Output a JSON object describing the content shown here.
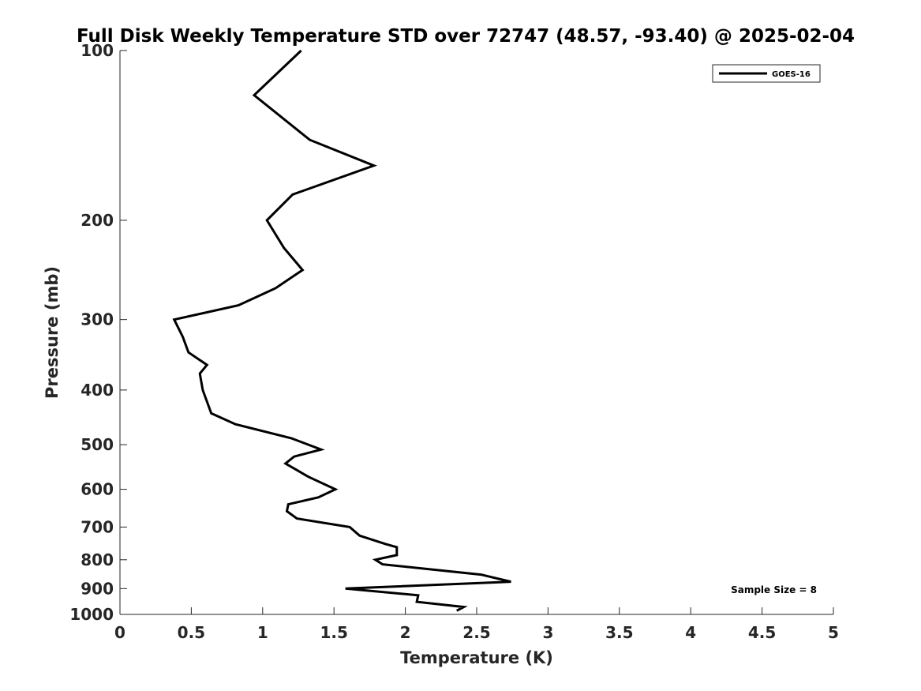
{
  "chart_data": {
    "type": "line",
    "title": "Full Disk Weekly Temperature STD over 72747 (48.57, -93.40) @ 2025-02-04",
    "xlabel": "Temperature (K)",
    "ylabel": "Pressure (mb)",
    "xlim": [
      0,
      5
    ],
    "ylim": [
      100,
      1000
    ],
    "y_scale": "log",
    "y_direction": "reversed",
    "grid": false,
    "legend_position": "top-right",
    "x_ticks": [
      0,
      0.5,
      1,
      1.5,
      2,
      2.5,
      3,
      3.5,
      4,
      4.5,
      5
    ],
    "x_tick_labels": [
      "0",
      "0.5",
      "1",
      "1.5",
      "2",
      "2.5",
      "3",
      "3.5",
      "4",
      "4.5",
      "5"
    ],
    "y_ticks": [
      100,
      200,
      300,
      400,
      500,
      600,
      700,
      800,
      900,
      1000
    ],
    "y_tick_labels": [
      "100",
      "200",
      "300",
      "400",
      "500",
      "600",
      "700",
      "800",
      "900",
      "1000"
    ],
    "series": [
      {
        "name": "GOES-16",
        "color": "#000000",
        "points": [
          [
            1.27,
            100
          ],
          [
            0.94,
            120
          ],
          [
            1.33,
            144
          ],
          [
            1.78,
            160
          ],
          [
            1.21,
            180
          ],
          [
            1.03,
            200
          ],
          [
            1.15,
            224
          ],
          [
            1.28,
            245
          ],
          [
            1.09,
            264
          ],
          [
            0.83,
            283
          ],
          [
            0.38,
            300
          ],
          [
            0.44,
            322
          ],
          [
            0.48,
            343
          ],
          [
            0.61,
            361
          ],
          [
            0.56,
            374
          ],
          [
            0.58,
            400
          ],
          [
            0.64,
            440
          ],
          [
            0.81,
            460
          ],
          [
            1.2,
            487
          ],
          [
            1.41,
            510
          ],
          [
            1.22,
            525
          ],
          [
            1.16,
            540
          ],
          [
            1.32,
            570
          ],
          [
            1.51,
            600
          ],
          [
            1.39,
            620
          ],
          [
            1.18,
            638
          ],
          [
            1.17,
            656
          ],
          [
            1.24,
            676
          ],
          [
            1.61,
            700
          ],
          [
            1.68,
            725
          ],
          [
            1.86,
            750
          ],
          [
            1.94,
            760
          ],
          [
            1.94,
            785
          ],
          [
            1.79,
            800
          ],
          [
            1.84,
            815
          ],
          [
            2.53,
            850
          ],
          [
            2.74,
            875
          ],
          [
            1.58,
            900
          ],
          [
            2.09,
            925
          ],
          [
            2.08,
            950
          ],
          [
            2.41,
            970
          ],
          [
            2.36,
            985
          ]
        ]
      }
    ],
    "annotations": [
      {
        "text": "Sample Size = 8",
        "position": "bottom-right"
      }
    ]
  }
}
